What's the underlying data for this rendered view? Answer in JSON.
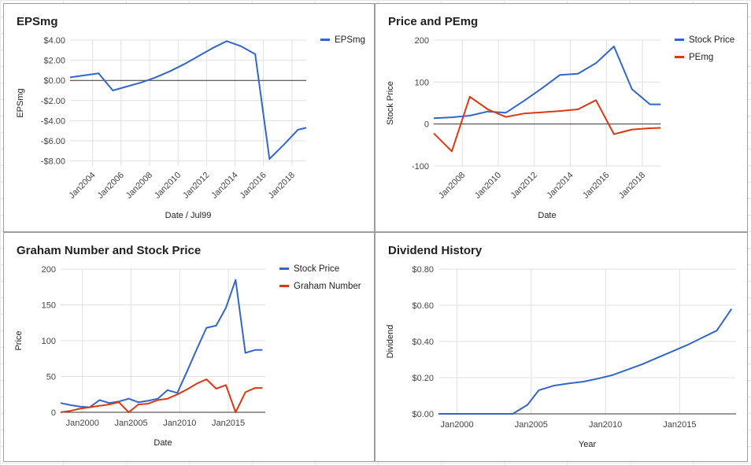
{
  "colors": {
    "blue": "#3366cc",
    "red": "#dc3912"
  },
  "chart_data": [
    {
      "id": "eps",
      "type": "line",
      "title": "EPSmg",
      "xlabel": "Date / Jul99",
      "ylabel": "EPSmg",
      "x_tick_labels": [
        "Jan2004",
        "Jan2006",
        "Jan2008",
        "Jan2010",
        "Jan2012",
        "Jan2014",
        "Jan2016",
        "Jan2018"
      ],
      "y_ticks": [
        4,
        2,
        0,
        -2,
        -4,
        -6,
        -8
      ],
      "y_tick_labels": [
        "$4.00",
        "$2.00",
        "$0.00",
        "-$2.00",
        "-$4.00",
        "-$6.00",
        "-$8.00"
      ],
      "xlim": [
        "2002-06",
        "2019-01"
      ],
      "ylim": [
        -8.5,
        4.0
      ],
      "zero_line": true,
      "legend": "right",
      "series": [
        {
          "name": "EPSmg",
          "color": "#3366cc",
          "x": [
            "2002-06",
            "2003-06",
            "2004-06",
            "2005-06",
            "2006-06",
            "2007-06",
            "2008-06",
            "2009-06",
            "2010-06",
            "2011-06",
            "2012-06",
            "2013-06",
            "2014-06",
            "2015-06",
            "2016-06",
            "2017-06",
            "2018-06",
            "2019-01"
          ],
          "y": [
            0.3,
            0.5,
            0.7,
            -1.0,
            -0.6,
            -0.2,
            0.3,
            0.9,
            1.6,
            2.4,
            3.2,
            3.9,
            3.4,
            2.6,
            -7.8,
            -6.4,
            -4.9,
            -4.7
          ]
        }
      ]
    },
    {
      "id": "price",
      "type": "line",
      "title": "Price and PEmg",
      "xlabel": "Date",
      "ylabel": "Stock Price",
      "x_tick_labels": [
        "Jan2008",
        "Jan2010",
        "Jan2012",
        "Jan2014",
        "Jan2016",
        "Jan2018"
      ],
      "y_ticks": [
        200,
        100,
        0,
        -100
      ],
      "y_tick_labels": [
        "200",
        "100",
        "0",
        "-100"
      ],
      "xlim": [
        "2006-06",
        "2019-01"
      ],
      "ylim": [
        -100,
        200
      ],
      "zero_line": true,
      "legend": "right",
      "series": [
        {
          "name": "Stock Price",
          "color": "#3366cc",
          "x": [
            "2006-06",
            "2007-06",
            "2008-06",
            "2009-06",
            "2010-06",
            "2011-06",
            "2012-06",
            "2013-06",
            "2014-06",
            "2015-06",
            "2016-06",
            "2017-06",
            "2018-06",
            "2019-01"
          ],
          "y": [
            14,
            16,
            20,
            30,
            27,
            55,
            85,
            117,
            120,
            145,
            185,
            83,
            47,
            47
          ]
        },
        {
          "name": "PEmg",
          "color": "#dc3912",
          "x": [
            "2006-06",
            "2007-06",
            "2008-06",
            "2009-06",
            "2010-06",
            "2011-06",
            "2012-06",
            "2013-06",
            "2014-06",
            "2015-06",
            "2016-06",
            "2017-06",
            "2018-06",
            "2019-01"
          ],
          "y": [
            -22,
            -65,
            65,
            35,
            17,
            25,
            28,
            31,
            35,
            57,
            -24,
            -13,
            -10,
            -9
          ]
        }
      ]
    },
    {
      "id": "graham",
      "type": "line",
      "title": "Graham Number and Stock Price",
      "xlabel": "Date",
      "ylabel": "Price",
      "x_tick_labels": [
        "Jan2000",
        "Jan2005",
        "Jan2010",
        "Jan2015"
      ],
      "x_tick_years": [
        2000,
        2005,
        2010,
        2015
      ],
      "y_ticks": [
        200,
        150,
        100,
        50,
        0
      ],
      "y_tick_labels": [
        "200",
        "150",
        "100",
        "50",
        "0"
      ],
      "xlim": [
        1997.75,
        2018.8
      ],
      "ylim": [
        0,
        200
      ],
      "legend": "right",
      "series": [
        {
          "name": "Stock Price",
          "color": "#3366cc",
          "x": [
            1997.75,
            1998.75,
            1999.75,
            2000.75,
            2001.75,
            2002.75,
            2003.75,
            2004.75,
            2005.75,
            2006.75,
            2007.75,
            2008.75,
            2009.75,
            2010.75,
            2011.75,
            2012.75,
            2013.75,
            2014.75,
            2015.75,
            2016.75,
            2017.75,
            2018.5
          ],
          "y": [
            13,
            10,
            8,
            7,
            17,
            13,
            15,
            19,
            14,
            16,
            19,
            31,
            27,
            57,
            88,
            118,
            121,
            146,
            185,
            83,
            87,
            87
          ]
        },
        {
          "name": "Graham Number",
          "color": "#dc3912",
          "x": [
            1997.75,
            1998.75,
            1999.75,
            2000.75,
            2001.75,
            2002.75,
            2003.75,
            2004.75,
            2005.75,
            2006.75,
            2007.75,
            2008.75,
            2009.75,
            2010.75,
            2011.75,
            2012.75,
            2013.75,
            2014.75,
            2015.75,
            2016.75,
            2017.75,
            2018.5
          ],
          "y": [
            0,
            2,
            5,
            7,
            9,
            11,
            14,
            0,
            11,
            12,
            17,
            19,
            25,
            32,
            40,
            46,
            33,
            38,
            0,
            28,
            34,
            34
          ]
        }
      ]
    },
    {
      "id": "dividend",
      "type": "line",
      "title": "Dividend History",
      "xlabel": "Year",
      "ylabel": "Dividend",
      "x_tick_labels": [
        "Jan2000",
        "Jan2005",
        "Jan2010",
        "Jan2015"
      ],
      "x_tick_years": [
        2000,
        2005,
        2010,
        2015
      ],
      "y_ticks": [
        0.8,
        0.6,
        0.4,
        0.2,
        0
      ],
      "y_tick_labels": [
        "$0.80",
        "$0.60",
        "$0.40",
        "$0.20",
        "$0.00"
      ],
      "xlim": [
        1998.75,
        2018.8
      ],
      "ylim": [
        0,
        0.8
      ],
      "legend": "none",
      "series": [
        {
          "name": "",
          "color": "#3366cc",
          "x": [
            1998.75,
            2000,
            2002,
            2003.75,
            2004.75,
            2005.5,
            2006.5,
            2007.5,
            2008.5,
            2009.5,
            2010.5,
            2011.5,
            2012.5,
            2013.5,
            2014.5,
            2015.5,
            2016.5,
            2017.5,
            2018.5
          ],
          "y": [
            0,
            0,
            0,
            0,
            0.05,
            0.13,
            0.155,
            0.168,
            0.178,
            0.195,
            0.215,
            0.245,
            0.275,
            0.31,
            0.345,
            0.38,
            0.42,
            0.46,
            0.58
          ]
        }
      ]
    }
  ]
}
